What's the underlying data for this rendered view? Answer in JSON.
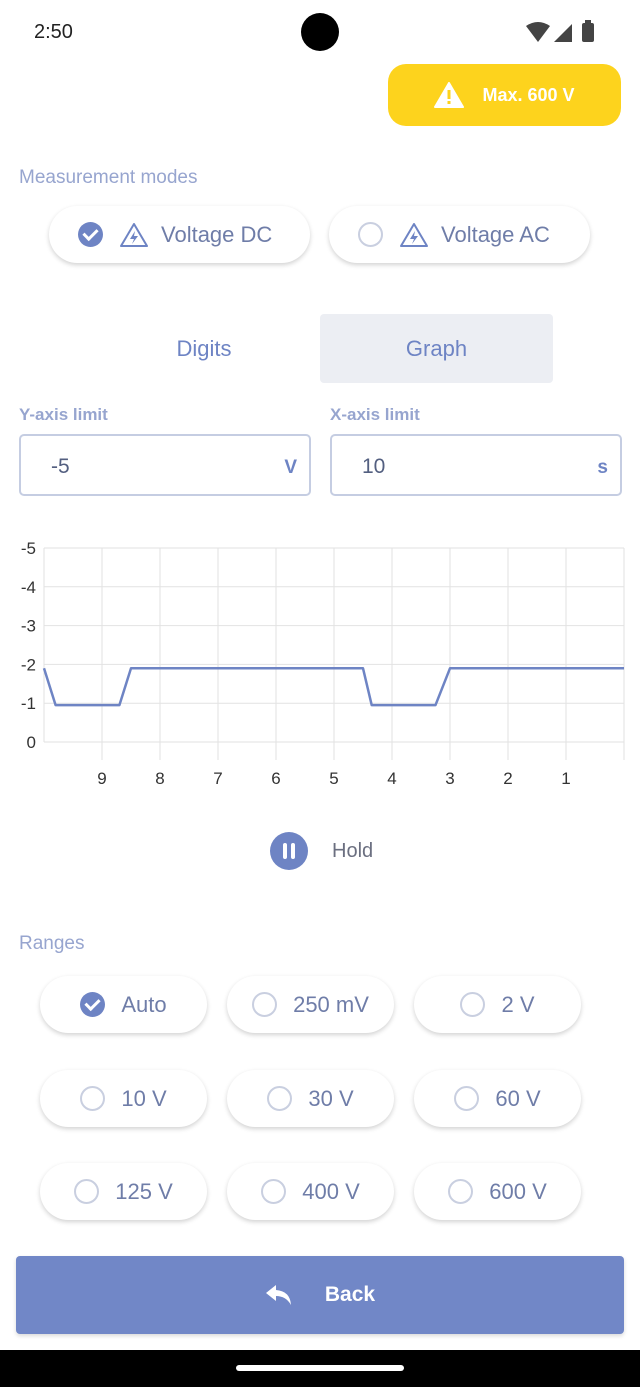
{
  "status_bar": {
    "time": "2:50"
  },
  "warning_button": {
    "label": "Max. 600 V",
    "color": "#fdd31d",
    "icon": "warning-triangle-icon"
  },
  "measurement_modes": {
    "title": "Measurement modes",
    "options": [
      {
        "label": "Voltage DC",
        "checked": true,
        "icon": "voltage-icon"
      },
      {
        "label": "Voltage AC",
        "checked": false,
        "icon": "voltage-icon"
      }
    ]
  },
  "view_toggle": {
    "digits_label": "Digits",
    "graph_label": "Graph",
    "active": "Graph"
  },
  "y_axis_limit": {
    "label": "Y-axis limit",
    "value": "-5",
    "unit": "V"
  },
  "x_axis_limit": {
    "label": "X-axis limit",
    "value": "10",
    "unit": "s"
  },
  "chart_data": {
    "type": "line",
    "y_ticks": [
      "-5",
      "-4",
      "-3",
      "-2",
      "-1",
      "0"
    ],
    "x_ticks": [
      "9",
      "8",
      "7",
      "6",
      "5",
      "4",
      "3",
      "2",
      "1"
    ],
    "xlim": [
      10,
      0
    ],
    "ylim": [
      0,
      -5
    ],
    "grid": true,
    "series": [
      {
        "color": "#6e84c4",
        "points": [
          [
            10,
            -1.9
          ],
          [
            9.8,
            -0.95
          ],
          [
            8.7,
            -0.95
          ],
          [
            8.5,
            -1.9
          ],
          [
            4.5,
            -1.9
          ],
          [
            4.35,
            -0.95
          ],
          [
            3.25,
            -0.95
          ],
          [
            3.0,
            -1.9
          ],
          [
            0,
            -1.9
          ]
        ]
      }
    ]
  },
  "hold": {
    "label": "Hold",
    "icon": "pause-icon"
  },
  "ranges": {
    "title": "Ranges",
    "options": [
      {
        "label": "Auto",
        "checked": true
      },
      {
        "label": "250 mV",
        "checked": false
      },
      {
        "label": "2 V",
        "checked": false
      },
      {
        "label": "10 V",
        "checked": false
      },
      {
        "label": "30 V",
        "checked": false
      },
      {
        "label": "60 V",
        "checked": false
      },
      {
        "label": "125 V",
        "checked": false
      },
      {
        "label": "400 V",
        "checked": false
      },
      {
        "label": "600 V",
        "checked": false
      }
    ]
  },
  "back_button": {
    "label": "Back",
    "icon": "reply-arrow-icon",
    "color": "#7187c7"
  }
}
